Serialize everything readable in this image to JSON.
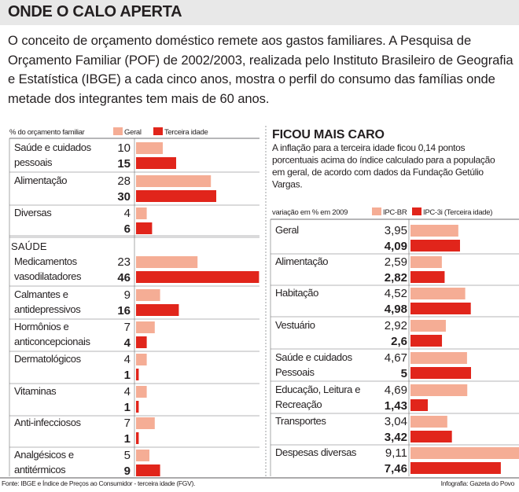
{
  "header": {
    "title": "ONDE O CALO APERTA"
  },
  "intro": "O conceito de orçamento doméstico remete aos gastos familiares. A Pesquisa de Orçamento Familiar (POF) de 2002/2003, realizada pelo Instituto Brasileiro de Geografia e Estatística (IBGE) a cada cinco anos, mostra o perfil do consumo das famílias onde metade dos integrantes tem mais de 60 anos.",
  "colors": {
    "geral": "#f5ad95",
    "terceira": "#e1251b",
    "divider": "#6d6e71",
    "heading_blue": "#1a5aa5"
  },
  "chart_data": [
    {
      "type": "bar",
      "orientation": "horizontal",
      "axis_label": "% do orçamento familiar",
      "legend": [
        "Geral",
        "Terceira idade"
      ],
      "groups": [
        {
          "title": "",
          "rows": [
            {
              "label": [
                "Saúde e cuidados",
                "pessoais"
              ],
              "values": [
                10,
                15
              ],
              "display": [
                "10",
                "15"
              ]
            },
            {
              "label": [
                "Alimentação"
              ],
              "values": [
                28,
                30
              ],
              "display": [
                "28",
                "30"
              ]
            },
            {
              "label": [
                "Diversas"
              ],
              "values": [
                4,
                6
              ],
              "display": [
                "4",
                "6"
              ]
            }
          ]
        },
        {
          "title": "SAÚDE",
          "rows": [
            {
              "label": [
                "Medicamentos",
                "vasodilatadores"
              ],
              "values": [
                23,
                46
              ],
              "display": [
                "23",
                "46"
              ]
            },
            {
              "label": [
                "Calmantes e",
                "antidepressivos"
              ],
              "values": [
                9,
                16
              ],
              "display": [
                "9",
                "16"
              ]
            },
            {
              "label": [
                "Hormônios e",
                "anticoncepcionais"
              ],
              "values": [
                7,
                4
              ],
              "display": [
                "7",
                "4"
              ]
            },
            {
              "label": [
                "Dermatológicos"
              ],
              "values": [
                4,
                1
              ],
              "display": [
                "4",
                "1"
              ]
            },
            {
              "label": [
                "Vitaminas"
              ],
              "values": [
                4,
                1
              ],
              "display": [
                "4",
                "1"
              ]
            },
            {
              "label": [
                "Anti-infecciosos"
              ],
              "values": [
                7,
                1
              ],
              "display": [
                "7",
                "1"
              ]
            },
            {
              "label": [
                "Analgésicos e",
                "antitérmicos"
              ],
              "values": [
                5,
                9
              ],
              "display": [
                "5",
                "9"
              ]
            }
          ]
        }
      ]
    },
    {
      "type": "bar",
      "orientation": "horizontal",
      "title": "FICOU MAIS CARO",
      "description": [
        "A inflação para a terceira idade ficou 0,14 pontos",
        "porcentuais acima do índice calculado para a população",
        "em geral, de acordo com dados da Fundação Getúlio",
        "Vargas."
      ],
      "axis_label": "variação em % em 2009",
      "legend": [
        "IPC-BR",
        "IPC-3i (Terceira idade)"
      ],
      "rows": [
        {
          "label": [
            "Geral"
          ],
          "values": [
            3.95,
            4.09
          ],
          "display": [
            "3,95",
            "4,09"
          ]
        },
        {
          "label": [
            "Alimentação"
          ],
          "values": [
            2.59,
            2.82
          ],
          "display": [
            "2,59",
            "2,82"
          ]
        },
        {
          "label": [
            "Habitação"
          ],
          "values": [
            4.52,
            4.98
          ],
          "display": [
            "4,52",
            "4,98"
          ]
        },
        {
          "label": [
            "Vestuário"
          ],
          "values": [
            2.92,
            2.6
          ],
          "display": [
            "2,92",
            "2,6"
          ]
        },
        {
          "label": [
            "Saúde e cuidados",
            "Pessoais"
          ],
          "values": [
            4.67,
            5
          ],
          "display": [
            "4,67",
            "5"
          ]
        },
        {
          "label": [
            "Educação, Leitura e",
            "Recreação"
          ],
          "values": [
            4.69,
            1.43
          ],
          "display": [
            "4,69",
            "1,43"
          ]
        },
        {
          "label": [
            "Transportes"
          ],
          "values": [
            3.04,
            3.42
          ],
          "display": [
            "3,04",
            "3,42"
          ]
        },
        {
          "label": [
            "Despesas diversas"
          ],
          "values": [
            9.11,
            7.46
          ],
          "display": [
            "9,11",
            "7,46"
          ]
        }
      ]
    }
  ],
  "footer": {
    "source": "Fonte: IBGE e Índice de Preços ao Consumidor - terceira idade (FGV).",
    "credit": "Infografia: Gazeta do Povo"
  }
}
